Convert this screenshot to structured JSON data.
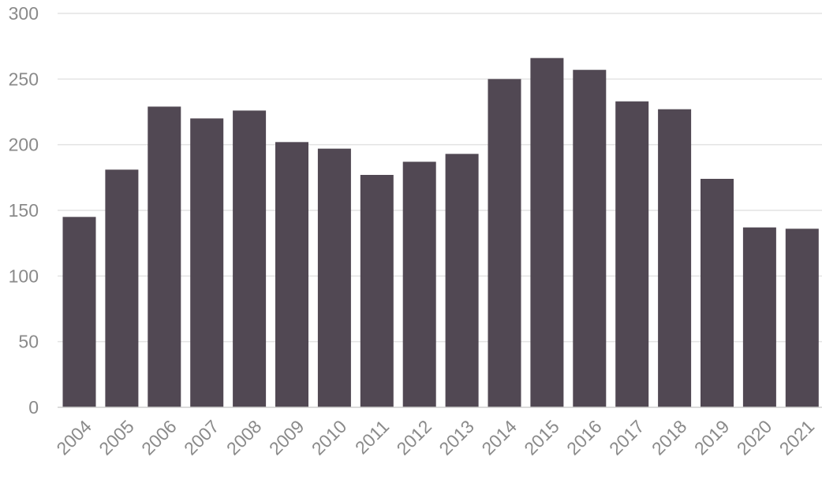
{
  "chart_data": {
    "type": "bar",
    "title": "",
    "xlabel": "",
    "ylabel": "",
    "categories": [
      "2004",
      "2005",
      "2006",
      "2007",
      "2008",
      "2009",
      "2010",
      "2011",
      "2012",
      "2013",
      "2014",
      "2015",
      "2016",
      "2017",
      "2018",
      "2019",
      "2020",
      "2021"
    ],
    "values": [
      145,
      181,
      229,
      220,
      226,
      202,
      197,
      177,
      187,
      193,
      250,
      266,
      257,
      233,
      227,
      174,
      137,
      136
    ],
    "ylim": [
      0,
      300
    ],
    "yticks": [
      "0",
      "50",
      "100",
      "150",
      "200",
      "250",
      "300"
    ],
    "grid": true,
    "legend": "none",
    "bar_color": "#514853"
  }
}
